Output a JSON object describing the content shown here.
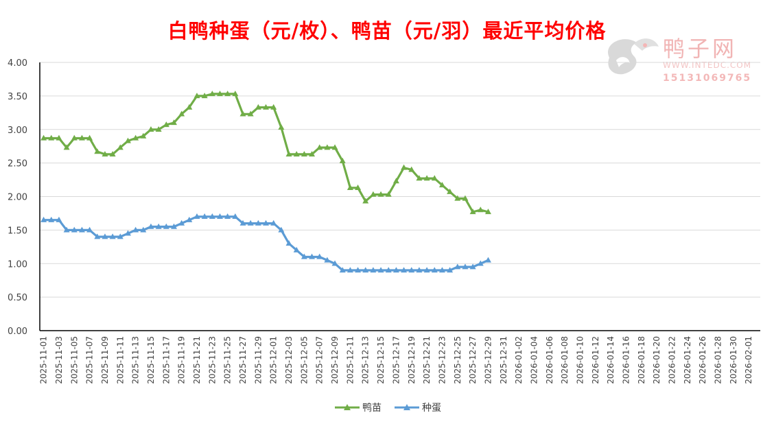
{
  "chart_data": {
    "type": "line",
    "title": "白鸭种蛋（元/枚）、鸭苗（元/羽）最近平均价格",
    "ylim": [
      0,
      4
    ],
    "y_ticks": [
      "4.00",
      "3.50",
      "3.00",
      "2.50",
      "2.00",
      "1.50",
      "1.00",
      "0.50",
      "0.00"
    ],
    "x_range": [
      "2025-11-01",
      "2026-02-02"
    ],
    "x_tick_labels": [
      "2025-11-01",
      "2025-11-03",
      "2025-11-05",
      "2025-11-07",
      "2025-11-09",
      "2025-11-11",
      "2025-11-13",
      "2025-11-15",
      "2025-11-17",
      "2025-11-19",
      "2025-11-21",
      "2025-11-23",
      "2025-11-25",
      "2025-11-27",
      "2025-11-29",
      "2025-12-01",
      "2025-12-03",
      "2025-12-05",
      "2025-12-07",
      "2025-12-09",
      "2025-12-11",
      "2025-12-13",
      "2025-12-15",
      "2025-12-17",
      "2025-12-19",
      "2025-12-21",
      "2025-12-23",
      "2025-12-25",
      "2025-12-27",
      "2025-12-29",
      "2025-12-31",
      "2026-01-02",
      "2026-01-04",
      "2026-01-06",
      "2026-01-08",
      "2026-01-10",
      "2026-01-12",
      "2026-01-14",
      "2026-01-16",
      "2026-01-18",
      "2026-01-20",
      "2026-01-22",
      "2026-01-24",
      "2026-01-26",
      "2026-01-28",
      "2026-01-30",
      "2026-02-01"
    ],
    "x": [
      "2025-11-01",
      "2025-11-02",
      "2025-11-03",
      "2025-11-04",
      "2025-11-05",
      "2025-11-06",
      "2025-11-07",
      "2025-11-08",
      "2025-11-09",
      "2025-11-10",
      "2025-11-11",
      "2025-11-12",
      "2025-11-13",
      "2025-11-14",
      "2025-11-15",
      "2025-11-16",
      "2025-11-17",
      "2025-11-18",
      "2025-11-19",
      "2025-11-20",
      "2025-11-21",
      "2025-11-22",
      "2025-11-23",
      "2025-11-24",
      "2025-11-25",
      "2025-11-26",
      "2025-11-27",
      "2025-11-28",
      "2025-11-29",
      "2025-11-30",
      "2025-12-01",
      "2025-12-02",
      "2025-12-03",
      "2025-12-04",
      "2025-12-05",
      "2025-12-06",
      "2025-12-07",
      "2025-12-08",
      "2025-12-09",
      "2025-12-10",
      "2025-12-11",
      "2025-12-12",
      "2025-12-13",
      "2025-12-14",
      "2025-12-15",
      "2025-12-16",
      "2025-12-17",
      "2025-12-18",
      "2025-12-19",
      "2025-12-20",
      "2025-12-21",
      "2025-12-22",
      "2025-12-23",
      "2025-12-24",
      "2025-12-25",
      "2025-12-26",
      "2025-12-27",
      "2025-12-28",
      "2025-12-29"
    ],
    "series": [
      {
        "name": "鸭苗",
        "color": "#70ad47",
        "values": [
          2.87,
          2.87,
          2.87,
          2.73,
          2.87,
          2.87,
          2.87,
          2.67,
          2.63,
          2.63,
          2.73,
          2.83,
          2.87,
          2.9,
          3.0,
          3.0,
          3.07,
          3.1,
          3.23,
          3.33,
          3.5,
          3.5,
          3.53,
          3.53,
          3.53,
          3.53,
          3.23,
          3.23,
          3.33,
          3.33,
          3.33,
          3.03,
          2.63,
          2.63,
          2.63,
          2.63,
          2.73,
          2.73,
          2.73,
          2.53,
          2.13,
          2.13,
          1.93,
          2.03,
          2.03,
          2.03,
          2.23,
          2.43,
          2.4,
          2.27,
          2.27,
          2.27,
          2.17,
          2.07,
          1.97,
          1.97,
          1.77,
          1.8,
          1.77
        ]
      },
      {
        "name": "种蛋",
        "color": "#5b9bd5",
        "values": [
          1.65,
          1.65,
          1.65,
          1.5,
          1.5,
          1.5,
          1.5,
          1.4,
          1.4,
          1.4,
          1.4,
          1.45,
          1.5,
          1.5,
          1.55,
          1.55,
          1.55,
          1.55,
          1.6,
          1.65,
          1.7,
          1.7,
          1.7,
          1.7,
          1.7,
          1.7,
          1.6,
          1.6,
          1.6,
          1.6,
          1.6,
          1.5,
          1.3,
          1.2,
          1.1,
          1.1,
          1.1,
          1.05,
          1.0,
          0.9,
          0.9,
          0.9,
          0.9,
          0.9,
          0.9,
          0.9,
          0.9,
          0.9,
          0.9,
          0.9,
          0.9,
          0.9,
          0.9,
          0.9,
          0.95,
          0.95,
          0.95,
          1.0,
          1.05
        ]
      }
    ],
    "legend": "bottom",
    "grid": true
  },
  "watermark": {
    "name": "鸭子网",
    "site": "WWW.INTEDC.COM",
    "phone": "15131069765"
  }
}
